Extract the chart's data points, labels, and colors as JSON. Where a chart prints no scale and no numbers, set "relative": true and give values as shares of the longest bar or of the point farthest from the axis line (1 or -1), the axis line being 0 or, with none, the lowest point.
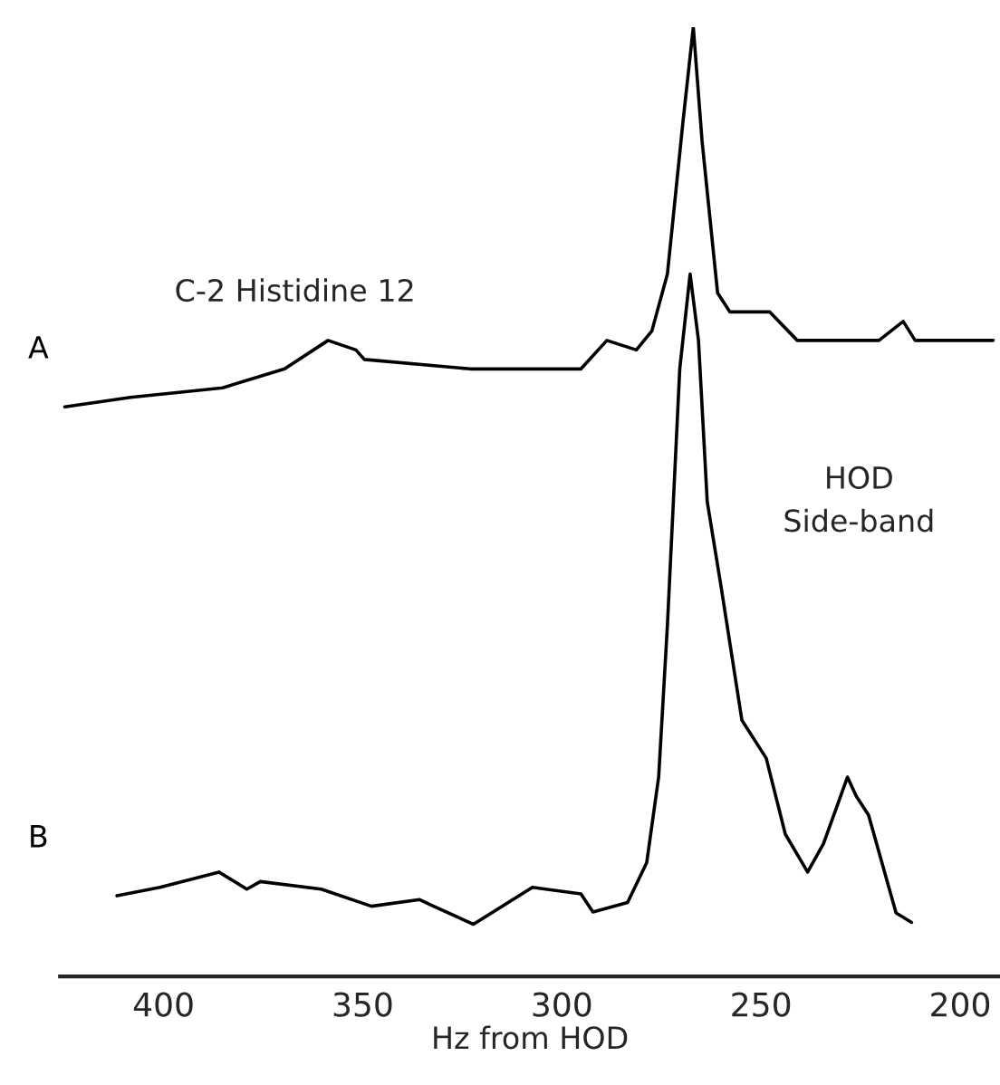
{
  "chart_data": {
    "type": "line",
    "relative": true,
    "xlabel": "Hz from HOD",
    "xlim": [
      426,
      190
    ],
    "xticks": [
      400,
      350,
      300,
      250,
      200
    ],
    "grid": false,
    "legend": false,
    "marker": "none",
    "line_style": "solid",
    "annotations": [
      "C-2 Histidine 12",
      "HOD\nSide-band"
    ],
    "series": [
      {
        "name": "A",
        "color": "#000000",
        "x": [
          424.8,
          408.3,
          385.2,
          369.6,
          358.7,
          351.7,
          349.6,
          323.0,
          295.2,
          288.7,
          281.3,
          277.4,
          273.5,
          269.6,
          267.0,
          264.8,
          260.9,
          257.8,
          247.8,
          240.9,
          220.4,
          214.3,
          211.3,
          191.7
        ],
        "values": [
          0.6,
          0.61,
          0.62,
          0.64,
          0.67,
          0.66,
          0.65,
          0.64,
          0.64,
          0.67,
          0.66,
          0.68,
          0.74,
          0.9,
          1.0,
          0.88,
          0.72,
          0.7,
          0.7,
          0.67,
          0.67,
          0.69,
          0.67,
          0.67
        ]
      },
      {
        "name": "B",
        "color": "#000000",
        "x": [
          411.7,
          400.9,
          386.1,
          379.1,
          375.7,
          360.4,
          347.8,
          335.7,
          332.2,
          322.2,
          307.4,
          295.2,
          292.2,
          283.5,
          278.7,
          275.7,
          273.5,
          270.4,
          267.8,
          265.7,
          263.5,
          260.0,
          254.8,
          248.7,
          243.9,
          238.3,
          234.3,
          228.3,
          226.1,
          223.0,
          216.1,
          212.2
        ],
        "values": [
          0.085,
          0.094,
          0.11,
          0.092,
          0.1,
          0.092,
          0.074,
          0.081,
          0.074,
          0.055,
          0.094,
          0.087,
          0.068,
          0.078,
          0.12,
          0.21,
          0.37,
          0.64,
          0.74,
          0.67,
          0.5,
          0.41,
          0.27,
          0.23,
          0.15,
          0.11,
          0.14,
          0.21,
          0.19,
          0.17,
          0.067,
          0.057
        ]
      }
    ]
  }
}
